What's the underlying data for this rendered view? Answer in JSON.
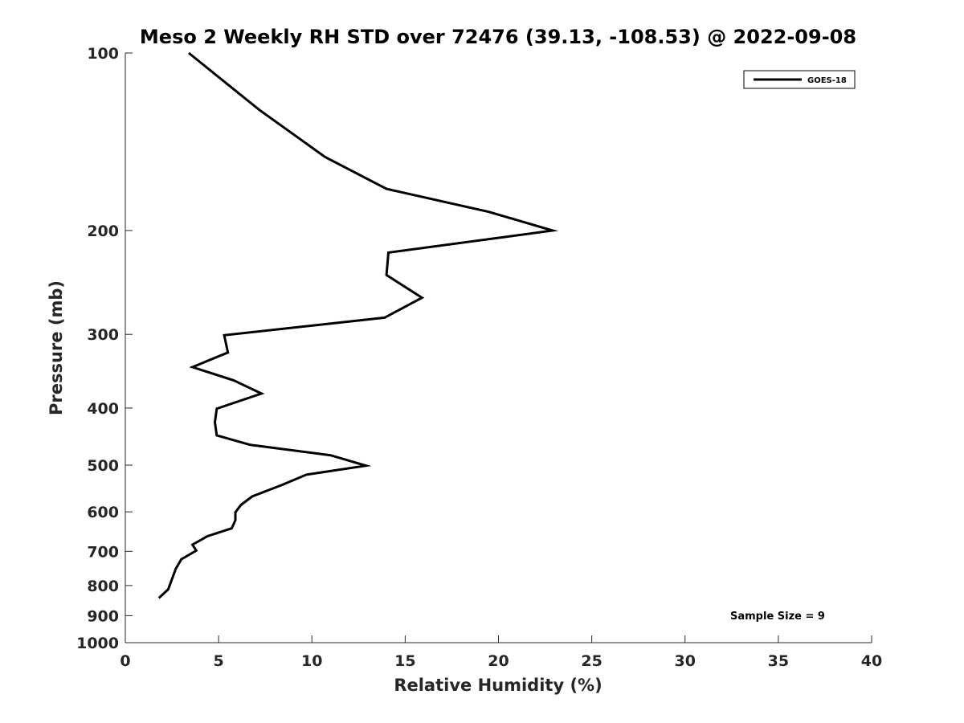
{
  "chart_data": {
    "type": "line",
    "title": "Meso 2 Weekly RH STD over 72476 (39.13, -108.53) @ 2022-09-08",
    "xlabel": "Relative Humidity (%)",
    "ylabel": "Pressure (mb)",
    "xlim": [
      0,
      40
    ],
    "ylim": [
      100,
      1000
    ],
    "yscale": "log",
    "y_reversed": true,
    "x_ticks": [
      0,
      5,
      10,
      15,
      20,
      25,
      30,
      35,
      40
    ],
    "y_ticks": [
      100,
      200,
      300,
      400,
      500,
      600,
      700,
      800,
      900,
      1000
    ],
    "legend": {
      "position": "top-right",
      "entries": [
        "GOES-18"
      ]
    },
    "annotation": "Sample Size = 9",
    "grid": false,
    "series": [
      {
        "name": "GOES-18",
        "color": "#000000",
        "points": [
          [
            3.4,
            100
          ],
          [
            7.2,
            125
          ],
          [
            10.7,
            150
          ],
          [
            14.0,
            170
          ],
          [
            19.5,
            186
          ],
          [
            22.9,
            200
          ],
          [
            14.1,
            218
          ],
          [
            14.0,
            238
          ],
          [
            15.9,
            260
          ],
          [
            13.9,
            281
          ],
          [
            5.3,
            301
          ],
          [
            5.5,
            322
          ],
          [
            3.6,
            341
          ],
          [
            5.8,
            359
          ],
          [
            7.3,
            378
          ],
          [
            4.9,
            401
          ],
          [
            4.8,
            423
          ],
          [
            4.9,
            445
          ],
          [
            6.7,
            462
          ],
          [
            11.0,
            481
          ],
          [
            12.9,
            501
          ],
          [
            9.7,
            519
          ],
          [
            8.4,
            540
          ],
          [
            6.8,
            565
          ],
          [
            6.2,
            584
          ],
          [
            5.9,
            601
          ],
          [
            5.9,
            620
          ],
          [
            5.7,
            640
          ],
          [
            4.4,
            660
          ],
          [
            3.6,
            682
          ],
          [
            3.8,
            698
          ],
          [
            3.0,
            722
          ],
          [
            2.7,
            750
          ],
          [
            2.5,
            780
          ],
          [
            2.3,
            812
          ],
          [
            1.8,
            840
          ]
        ]
      }
    ]
  }
}
